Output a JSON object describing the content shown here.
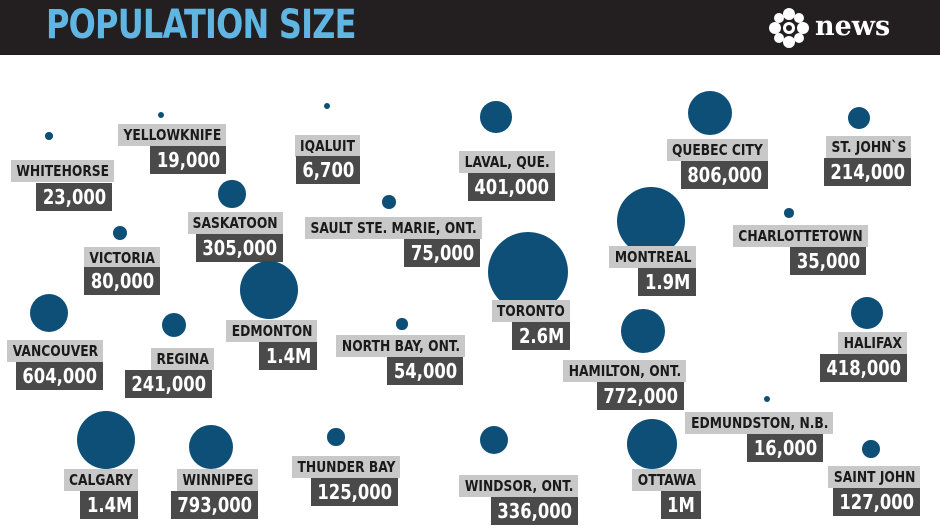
{
  "header": {
    "title": "POPULATION SIZE",
    "brand": "news"
  },
  "colors": {
    "header_bg": "#231f20",
    "title": "#5fb6e3",
    "bubble": "#0e4f78",
    "name_label_bg": "#c8c8c8",
    "value_label_bg": "#4a4a4a"
  },
  "chart_data": {
    "type": "bubble",
    "title": "POPULATION SIZE",
    "size_encodes": "population",
    "points": [
      {
        "name": "WHITEHORSE",
        "label": "23,000",
        "value": 23000
      },
      {
        "name": "YELLOWKNIFE",
        "label": "19,000",
        "value": 19000
      },
      {
        "name": "IQALUIT",
        "label": "6,700",
        "value": 6700
      },
      {
        "name": "LAVAL, QUE.",
        "label": "401,000",
        "value": 401000
      },
      {
        "name": "QUEBEC CITY",
        "label": "806,000",
        "value": 806000
      },
      {
        "name": "ST. JOHN`S",
        "label": "214,000",
        "value": 214000
      },
      {
        "name": "SASKATOON",
        "label": "305,000",
        "value": 305000
      },
      {
        "name": "SAULT STE. MARIE, ONT.",
        "label": "75,000",
        "value": 75000
      },
      {
        "name": "VICTORIA",
        "label": "80,000",
        "value": 80000
      },
      {
        "name": "CHARLOTTETOWN",
        "label": "35,000",
        "value": 35000
      },
      {
        "name": "MONTREAL",
        "label": "1.9M",
        "value": 1900000
      },
      {
        "name": "TORONTO",
        "label": "2.6M",
        "value": 2600000
      },
      {
        "name": "EDMONTON",
        "label": "1.4M",
        "value": 1400000
      },
      {
        "name": "VANCOUVER",
        "label": "604,000",
        "value": 604000
      },
      {
        "name": "REGINA",
        "label": "241,000",
        "value": 241000
      },
      {
        "name": "NORTH BAY, ONT.",
        "label": "54,000",
        "value": 54000
      },
      {
        "name": "HALIFAX",
        "label": "418,000",
        "value": 418000
      },
      {
        "name": "HAMILTON, ONT.",
        "label": "772,000",
        "value": 772000
      },
      {
        "name": "EDMUNDSTON, N.B.",
        "label": "16,000",
        "value": 16000
      },
      {
        "name": "CALGARY",
        "label": "1.4M",
        "value": 1400000
      },
      {
        "name": "WINNIPEG",
        "label": "793,000",
        "value": 793000
      },
      {
        "name": "THUNDER BAY",
        "label": "125,000",
        "value": 125000
      },
      {
        "name": "WINDSOR, ONT.",
        "label": "336,000",
        "value": 336000
      },
      {
        "name": "OTTAWA",
        "label": "1M",
        "value": 1000000
      },
      {
        "name": "SAINT JOHN",
        "label": "127,000",
        "value": 127000
      }
    ]
  }
}
